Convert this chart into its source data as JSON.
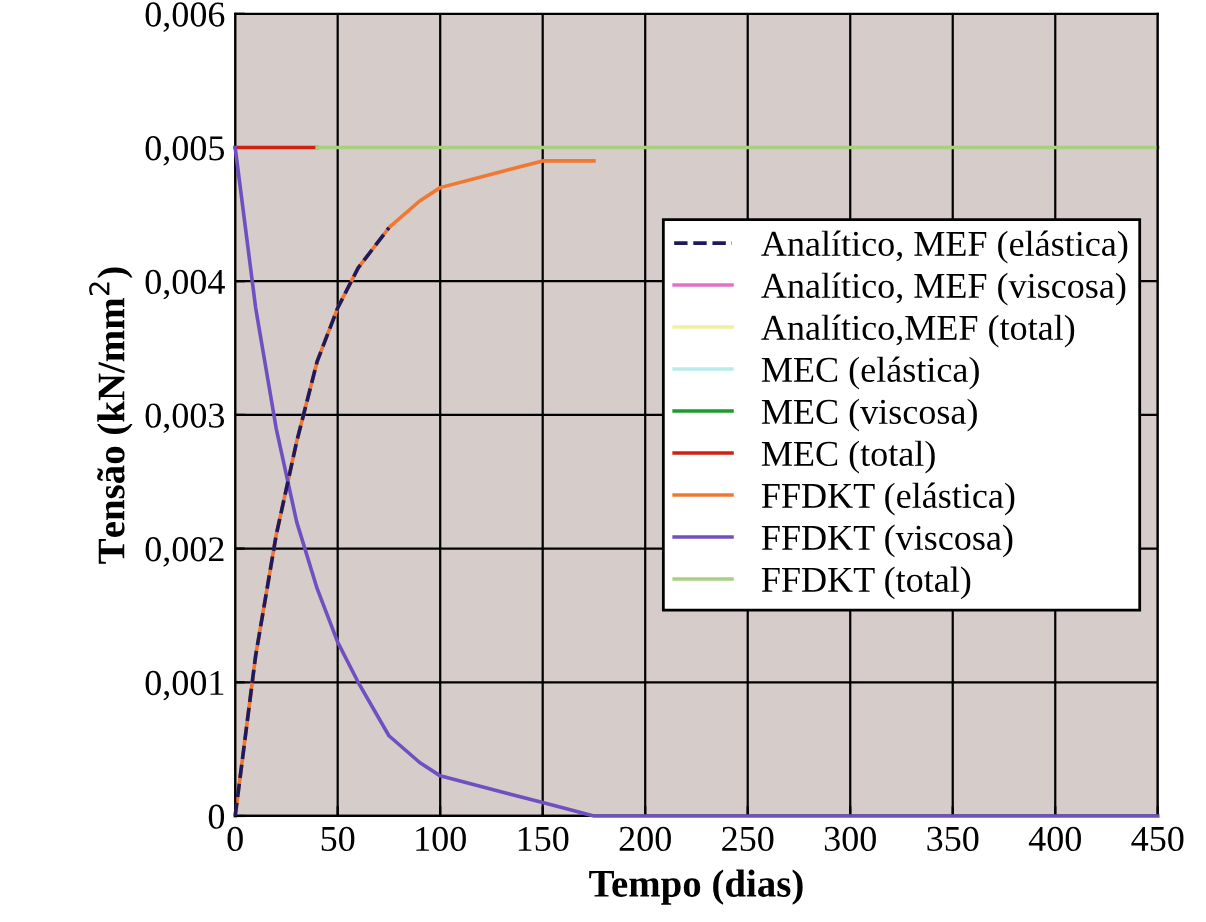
{
  "chart_data": {
    "type": "line",
    "xlabel": "Tempo (dias)",
    "ylabel": "Tensão (kN/mm$^{2}$)",
    "xlim": [
      0,
      450
    ],
    "xticks": [
      0,
      50,
      100,
      150,
      200,
      250,
      300,
      350,
      400,
      450
    ],
    "ylim": [
      0,
      0.006
    ],
    "yticks": [
      {
        "value": 0,
        "label": "0"
      },
      {
        "value": 0.001,
        "label": "0,001"
      },
      {
        "value": 0.002,
        "label": "0,002"
      },
      {
        "value": 0.003,
        "label": "0,003"
      },
      {
        "value": 0.004,
        "label": "0,004"
      },
      {
        "value": 0.005,
        "label": "0,005"
      },
      {
        "value": 0.006,
        "label": "0,006"
      }
    ],
    "grid": true,
    "legend": "right",
    "marker": "none",
    "line_style": "solid",
    "series": [
      {
        "name": "Analítico, MEF (elástica)",
        "color": "#1f1a5c",
        "line_style": "dashed",
        "x": [
          0,
          10,
          20,
          30,
          40,
          50,
          60,
          75
        ],
        "values": [
          0,
          0.0012,
          0.0021,
          0.0028,
          0.0034,
          0.0038,
          0.0041,
          0.0044
        ]
      },
      {
        "name": "Analítico, MEF (viscosa)",
        "color": "#e070c8",
        "values": [
          null
        ]
      },
      {
        "name": "Analítico,MEF (total)",
        "color": "#f0f0a0",
        "values": [
          null
        ]
      },
      {
        "name": "MEC (elástica)",
        "color": "#b8ecec",
        "values": [
          null
        ]
      },
      {
        "name": "MEC (viscosa)",
        "color": "#1a9a2a",
        "values": [
          null
        ]
      },
      {
        "name": "MEC (total)",
        "color": "#d02010",
        "x": [
          0,
          40
        ],
        "values": [
          0.005,
          0.005
        ]
      },
      {
        "name": "FFDKT (elástica)",
        "color": "#f07830",
        "x": [
          0,
          10,
          20,
          30,
          40,
          50,
          60,
          75,
          90,
          100,
          125,
          150,
          175
        ],
        "values": [
          0,
          0.0012,
          0.0021,
          0.0028,
          0.0034,
          0.0038,
          0.0041,
          0.0044,
          0.0046,
          0.0047,
          0.0048,
          0.0049,
          0.0049
        ]
      },
      {
        "name": "FFDKT (viscosa)",
        "color": "#7050c0",
        "x": [
          0,
          10,
          20,
          30,
          40,
          50,
          60,
          75,
          90,
          100,
          125,
          150,
          175,
          200,
          250,
          265,
          300,
          350,
          400,
          450
        ],
        "values": [
          0.005,
          0.0038,
          0.0029,
          0.0022,
          0.0017,
          0.0013,
          0.001,
          0.0006,
          0.0004,
          0.0003,
          0.0002,
          0.0001,
          0,
          0,
          0,
          0,
          0,
          0,
          0,
          0
        ],
        "line_style": "solid"
      },
      {
        "name": "FFDKT (total)",
        "color": "#a8d080",
        "x": [
          40,
          450
        ],
        "values": [
          0.005,
          0.005
        ]
      }
    ]
  }
}
